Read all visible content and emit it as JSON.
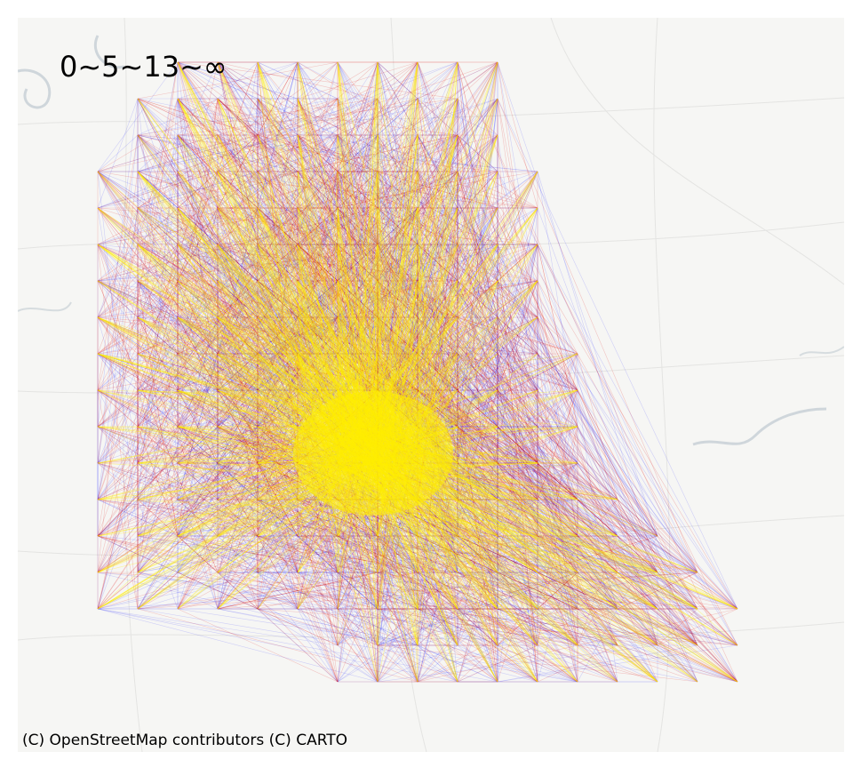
{
  "map": {
    "legend_label": "0~5~13~∞",
    "attribution": "(C) OpenStreetMap contributors (C) CARTO",
    "basemap_style": "CARTO light",
    "flow_colors": {
      "low": "#1a1aff",
      "mid": "#e01010",
      "high": "#ffee00"
    },
    "background_color": "#f6f6f4"
  }
}
